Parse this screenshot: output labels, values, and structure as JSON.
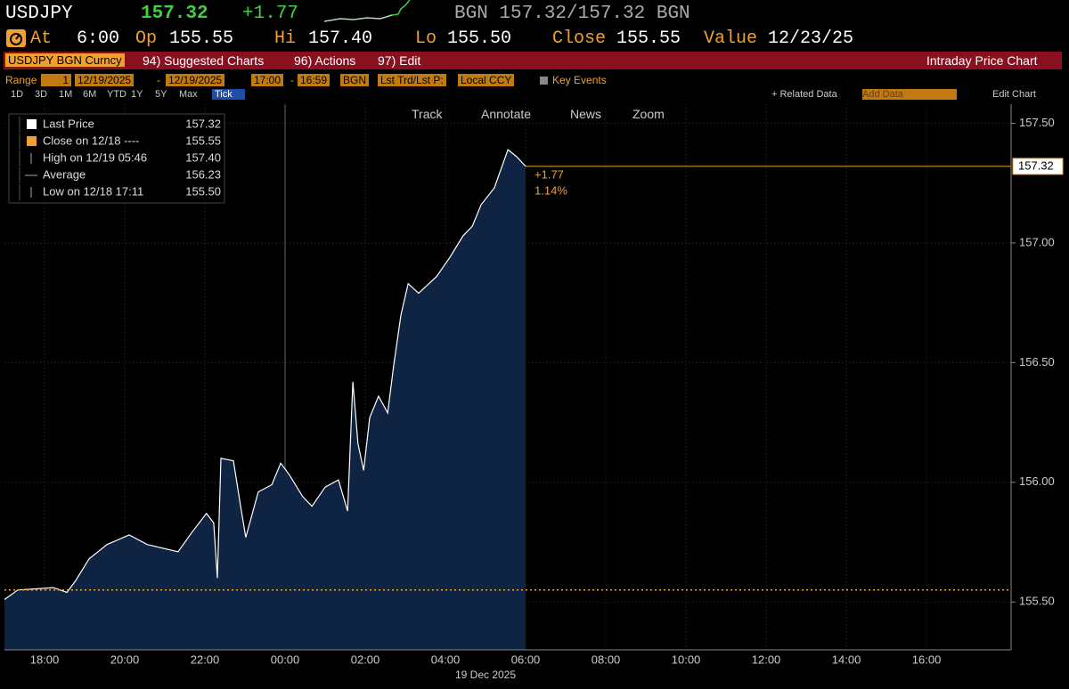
{
  "header": {
    "ticker": "USDJPY",
    "price": "157.32",
    "change": "+1.77",
    "quote": "BGN 157.32/157.32 BGN",
    "at_label": "At",
    "at_value": "6:00",
    "open_label": "Op",
    "open_value": "155.55",
    "high_label": "Hi",
    "high_value": "157.40",
    "low_label": "Lo",
    "low_value": "155.50",
    "close_label": "Close",
    "close_value": "155.55",
    "value_label": "Value",
    "value_date": "12/23/25"
  },
  "menu": {
    "security": "USDJPY BGN Curncy",
    "items": [
      "94) Suggested Charts",
      "96) Actions",
      "97) Edit"
    ],
    "title": "Intraday Price Chart"
  },
  "controls": {
    "range_label": "Range",
    "range_value": "1",
    "start_date": "12/19/2025",
    "range_sep": "-",
    "end_date": "12/19/2025",
    "start_time": "17:00",
    "time_sep": "-",
    "end_time": "16:59",
    "source": "BGN",
    "field": "Lst Trd/Lst P:",
    "currency": "Local CCY",
    "key_events": "Key Events",
    "periods": [
      "1D",
      "3D",
      "1M",
      "6M",
      "YTD",
      "1Y",
      "5Y",
      "Max",
      "Tick"
    ],
    "related_data": "+ Related Data",
    "add_data": "Add Data",
    "edit_chart": "Edit Chart"
  },
  "chart_tools": [
    "Track",
    "Annotate",
    "News",
    "Zoom"
  ],
  "chart_data": {
    "type": "area",
    "fill_color": "#0e2442",
    "x": [
      17.0,
      17.33,
      18.22,
      18.56,
      18.78,
      19.11,
      19.56,
      20.11,
      20.56,
      21.33,
      21.67,
      22.04,
      22.22,
      22.31,
      22.4,
      22.71,
      22.89,
      23.02,
      23.33,
      23.67,
      23.89,
      24.11,
      24.44,
      24.67,
      25.0,
      25.33,
      25.56,
      25.69,
      25.82,
      25.96,
      26.11,
      26.33,
      26.56,
      26.71,
      26.89,
      27.07,
      27.33,
      27.78,
      28.11,
      28.44,
      28.67,
      28.89,
      29.22,
      29.56,
      29.78,
      30.0
    ],
    "series": [
      {
        "name": "Last Price",
        "color": "#ffffff",
        "legend_value": "157.32",
        "values": [
          155.51,
          155.55,
          155.56,
          155.54,
          155.59,
          155.68,
          155.74,
          155.78,
          155.74,
          155.71,
          155.79,
          155.87,
          155.83,
          155.6,
          156.1,
          156.09,
          155.9,
          155.77,
          155.96,
          155.99,
          156.08,
          156.03,
          155.94,
          155.9,
          155.98,
          156.01,
          155.88,
          156.42,
          156.16,
          156.05,
          156.27,
          156.36,
          156.29,
          156.49,
          156.7,
          156.83,
          156.79,
          156.86,
          156.94,
          157.03,
          157.07,
          157.16,
          157.23,
          157.39,
          157.36,
          157.32
        ]
      }
    ],
    "stats": [
      {
        "label": "Close on 12/18 ----",
        "value": "155.55"
      },
      {
        "label": "High on 12/19 05:46",
        "value": "157.40"
      },
      {
        "label": "Average",
        "value": "156.23"
      },
      {
        "label": "Low on 12/18 17:11",
        "value": "155.50"
      }
    ],
    "close_line": {
      "value": 155.55,
      "color": "#f0a030"
    },
    "last_line": {
      "value": 157.32,
      "label": "157.32",
      "color": "#f0a030"
    },
    "annotations": [
      "+1.77",
      "1.14%"
    ],
    "xlim": [
      17,
      42.11
    ],
    "xticks": [
      {
        "value": 18,
        "label": "18:00"
      },
      {
        "value": 20,
        "label": "20:00"
      },
      {
        "value": 22,
        "label": "22:00"
      },
      {
        "value": 24,
        "label": "00:00"
      },
      {
        "value": 26,
        "label": "02:00"
      },
      {
        "value": 28,
        "label": "04:00"
      },
      {
        "value": 30,
        "label": "06:00"
      },
      {
        "value": 32,
        "label": "08:00"
      },
      {
        "value": 34,
        "label": "10:00"
      },
      {
        "value": 36,
        "label": "12:00"
      },
      {
        "value": 38,
        "label": "14:00"
      },
      {
        "value": 40,
        "label": "16:00"
      }
    ],
    "x_sublabel": "19 Dec 2025",
    "day_break": 24,
    "ylim": [
      155.3,
      157.58
    ],
    "yticks": [
      {
        "value": 155.5,
        "label": "155.50"
      },
      {
        "value": 156,
        "label": "156.00"
      },
      {
        "value": 156.5,
        "label": "156.50"
      },
      {
        "value": 157,
        "label": "157.00"
      },
      {
        "value": 157.5,
        "label": "157.50"
      }
    ],
    "grid": true
  }
}
